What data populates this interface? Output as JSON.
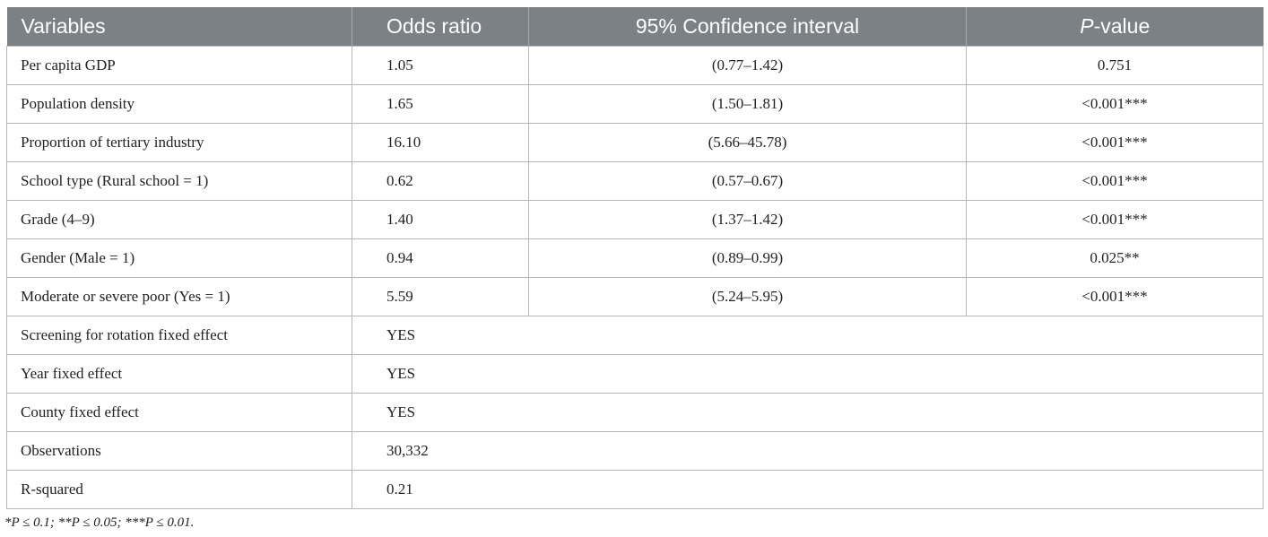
{
  "table": {
    "headers": {
      "variables": "Variables",
      "odds_ratio": "Odds ratio",
      "ci": "95% Confidence interval",
      "p_italic": "P",
      "p_rest": "-value"
    },
    "rows": [
      {
        "variable": "Per capita GDP",
        "odds_ratio": "1.05",
        "ci": "(0.77–1.42)",
        "p_value": "0.751"
      },
      {
        "variable": "Population density",
        "odds_ratio": "1.65",
        "ci": "(1.50–1.81)",
        "p_value": "<0.001***"
      },
      {
        "variable": "Proportion of tertiary industry",
        "odds_ratio": "16.10",
        "ci": "(5.66–45.78)",
        "p_value": "<0.001***"
      },
      {
        "variable": "School type (Rural school = 1)",
        "odds_ratio": "0.62",
        "ci": "(0.57–0.67)",
        "p_value": "<0.001***"
      },
      {
        "variable": "Grade (4–9)",
        "odds_ratio": "1.40",
        "ci": "(1.37–1.42)",
        "p_value": "<0.001***"
      },
      {
        "variable": "Gender (Male = 1)",
        "odds_ratio": "0.94",
        "ci": "(0.89–0.99)",
        "p_value": "0.025**"
      },
      {
        "variable": "Moderate or severe poor (Yes = 1)",
        "odds_ratio": "5.59",
        "ci": "(5.24–5.95)",
        "p_value": "<0.001***"
      }
    ],
    "extra_rows": [
      {
        "variable": "Screening for rotation fixed effect",
        "value": "YES"
      },
      {
        "variable": "Year fixed effect",
        "value": "YES"
      },
      {
        "variable": "County fixed effect",
        "value": "YES"
      },
      {
        "variable": "Observations",
        "value": "30,332"
      },
      {
        "variable": "R-squared",
        "value": "0.21"
      }
    ]
  },
  "footnote": "*P ≤ 0.1; **P ≤ 0.05; ***P ≤ 0.01.",
  "colors": {
    "header_bg": "#7c8186",
    "header_text": "#ffffff",
    "border": "#b7b7b7",
    "text": "#222222"
  }
}
